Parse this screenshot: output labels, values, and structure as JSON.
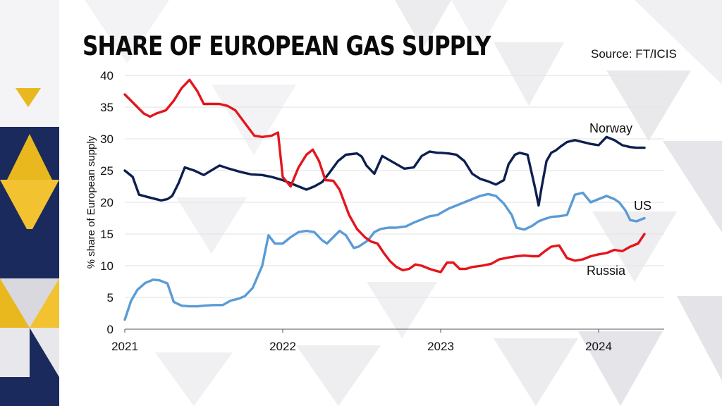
{
  "title": "SHARE OF EUROPEAN GAS SUPPLY",
  "source": "Source: FT/ICIS",
  "colors": {
    "Norway": "#0d1f4e",
    "US": "#5b9bd5",
    "Russia": "#e3161c",
    "accent": "#e8b81e",
    "navy": "#1b2a5c"
  },
  "chart_data": {
    "type": "line",
    "title": "SHARE OF EUROPEAN GAS SUPPLY",
    "xlabel": "",
    "ylabel": "% share of European supply",
    "xlim": [
      2021,
      2024.35
    ],
    "ylim": [
      0,
      40
    ],
    "yticks": [
      0,
      5,
      10,
      15,
      20,
      25,
      30,
      35,
      40
    ],
    "xticks": [
      {
        "value": 2021,
        "label": "2021"
      },
      {
        "value": 2022,
        "label": "2022"
      },
      {
        "value": 2023,
        "label": "2023"
      },
      {
        "value": 2024,
        "label": "2024"
      }
    ],
    "series": [
      {
        "name": "Norway",
        "label": "Norway",
        "x": [
          2021,
          2021.05,
          2021.09,
          2021.15,
          2021.23,
          2021.27,
          2021.3,
          2021.34,
          2021.38,
          2021.44,
          2021.5,
          2021.56,
          2021.6,
          2021.66,
          2021.73,
          2021.8,
          2021.87,
          2021.93,
          2022,
          2022.05,
          2022.1,
          2022.15,
          2022.2,
          2022.25,
          2022.3,
          2022.35,
          2022.4,
          2022.47,
          2022.5,
          2022.53,
          2022.58,
          2022.63,
          2022.7,
          2022.77,
          2022.83,
          2022.88,
          2022.93,
          2022.98,
          2023,
          2023.05,
          2023.1,
          2023.15,
          2023.2,
          2023.25,
          2023.3,
          2023.35,
          2023.4,
          2023.43,
          2023.47,
          2023.5,
          2023.55,
          2023.6,
          2023.62,
          2023.64,
          2023.67,
          2023.7,
          2023.73,
          2023.76,
          2023.8,
          2023.85,
          2023.9,
          2023.95,
          2024,
          2024.05,
          2024.1,
          2024.15,
          2024.2,
          2024.24,
          2024.29
        ],
        "y": [
          25,
          24,
          21.2,
          20.8,
          20.3,
          20.5,
          21,
          23,
          25.5,
          25,
          24.3,
          25.2,
          25.8,
          25.3,
          24.8,
          24.4,
          24.3,
          24,
          23.5,
          23,
          22.5,
          22,
          22.5,
          23.2,
          24.8,
          26.5,
          27.5,
          27.7,
          27.2,
          25.8,
          24.5,
          27.3,
          26.3,
          25.3,
          25.5,
          27.3,
          28,
          27.8,
          27.8,
          27.7,
          27.5,
          26.5,
          24.5,
          23.7,
          23.3,
          22.8,
          23.5,
          26,
          27.5,
          27.8,
          27.5,
          22,
          19.5,
          22.5,
          26.5,
          27.8,
          28.2,
          28.8,
          29.5,
          29.8,
          29.5,
          29.2,
          29,
          30.3,
          29.8,
          29,
          28.7,
          28.6,
          28.6
        ]
      },
      {
        "name": "US",
        "label": "US",
        "x": [
          2021,
          2021.04,
          2021.08,
          2021.13,
          2021.18,
          2021.22,
          2021.27,
          2021.31,
          2021.36,
          2021.41,
          2021.46,
          2021.5,
          2021.56,
          2021.62,
          2021.67,
          2021.72,
          2021.76,
          2021.81,
          2021.87,
          2021.91,
          2021.95,
          2022,
          2022.05,
          2022.1,
          2022.15,
          2022.2,
          2022.25,
          2022.28,
          2022.32,
          2022.36,
          2022.4,
          2022.45,
          2022.48,
          2022.54,
          2022.58,
          2022.62,
          2022.67,
          2022.72,
          2022.78,
          2022.83,
          2022.88,
          2022.93,
          2022.98,
          2023,
          2023.05,
          2023.1,
          2023.15,
          2023.2,
          2023.25,
          2023.3,
          2023.35,
          2023.4,
          2023.45,
          2023.48,
          2023.53,
          2023.58,
          2023.62,
          2023.65,
          2023.7,
          2023.75,
          2023.8,
          2023.85,
          2023.9,
          2023.95,
          2024,
          2024.05,
          2024.1,
          2024.13,
          2024.17,
          2024.2,
          2024.24,
          2024.29
        ],
        "y": [
          1.5,
          4.5,
          6.2,
          7.3,
          7.8,
          7.7,
          7.2,
          4.3,
          3.7,
          3.6,
          3.6,
          3.7,
          3.8,
          3.8,
          4.5,
          4.8,
          5.2,
          6.5,
          10,
          14.8,
          13.5,
          13.5,
          14.5,
          15.3,
          15.5,
          15.3,
          14,
          13.5,
          14.5,
          15.5,
          14.8,
          12.8,
          13,
          14,
          15.3,
          15.8,
          16,
          16,
          16.2,
          16.8,
          17.3,
          17.8,
          18,
          18.3,
          19,
          19.5,
          20,
          20.5,
          21,
          21.3,
          21,
          19.8,
          18,
          16,
          15.7,
          16.3,
          17,
          17.3,
          17.7,
          17.8,
          18,
          21.2,
          21.5,
          20,
          20.5,
          21,
          20.5,
          20,
          18.7,
          17.2,
          17,
          17.5
        ]
      },
      {
        "name": "Russia",
        "label": "Russia",
        "x": [
          2021,
          2021.04,
          2021.08,
          2021.12,
          2021.16,
          2021.2,
          2021.26,
          2021.31,
          2021.36,
          2021.41,
          2021.46,
          2021.5,
          2021.55,
          2021.6,
          2021.65,
          2021.7,
          2021.76,
          2021.82,
          2021.87,
          2021.93,
          2021.97,
          2022,
          2022.05,
          2022.1,
          2022.15,
          2022.19,
          2022.23,
          2022.27,
          2022.32,
          2022.36,
          2022.42,
          2022.47,
          2022.52,
          2022.56,
          2022.6,
          2022.64,
          2022.68,
          2022.72,
          2022.76,
          2022.8,
          2022.84,
          2022.88,
          2022.93,
          2022.97,
          2023,
          2023.04,
          2023.08,
          2023.12,
          2023.16,
          2023.2,
          2023.26,
          2023.32,
          2023.37,
          2023.43,
          2023.48,
          2023.53,
          2023.58,
          2023.62,
          2023.66,
          2023.7,
          2023.75,
          2023.8,
          2023.85,
          2023.9,
          2023.95,
          2024,
          2024.05,
          2024.1,
          2024.15,
          2024.2,
          2024.25,
          2024.29
        ],
        "y": [
          37,
          36,
          35,
          34,
          33.5,
          34,
          34.5,
          36,
          38,
          39.3,
          37.5,
          35.5,
          35.5,
          35.5,
          35.2,
          34.5,
          32.5,
          30.5,
          30.3,
          30.5,
          31,
          24,
          22.5,
          25.5,
          27.5,
          28.3,
          26.5,
          23.5,
          23.4,
          22,
          18,
          15.8,
          14.5,
          13.8,
          13.5,
          12,
          10.7,
          9.8,
          9.3,
          9.5,
          10.2,
          10,
          9.5,
          9.2,
          9,
          10.5,
          10.5,
          9.5,
          9.5,
          9.8,
          10,
          10.3,
          11,
          11.3,
          11.5,
          11.6,
          11.5,
          11.5,
          12.3,
          13,
          13.2,
          11.2,
          10.8,
          11,
          11.5,
          11.8,
          12,
          12.5,
          12.3,
          13,
          13.5,
          15
        ]
      }
    ]
  }
}
